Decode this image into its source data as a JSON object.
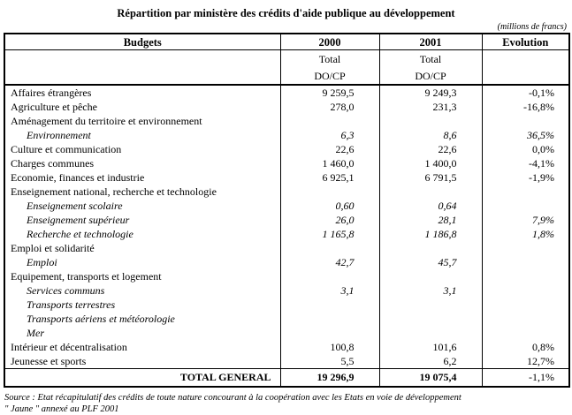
{
  "title": "Répartition par ministère des crédits d'aide publique au développement",
  "unit_note": "(millions de francs)",
  "table": {
    "headers": {
      "budgets": "Budgets",
      "col2000": "2000",
      "col2001": "2001",
      "evolution": "Evolution",
      "total_label": "Total",
      "docp_label": "DO/CP"
    },
    "rows": [
      {
        "label": "Affaires étrangères",
        "indent": false,
        "italic": false,
        "v2000": "9 259,5",
        "v2001": "9 249,3",
        "evol": "-0,1%"
      },
      {
        "label": "Agriculture et pêche",
        "indent": false,
        "italic": false,
        "v2000": "278,0",
        "v2001": "231,3",
        "evol": "-16,8%"
      },
      {
        "label": "Aménagement du territoire et environnement",
        "indent": false,
        "italic": false,
        "v2000": "",
        "v2001": "",
        "evol": ""
      },
      {
        "label": "Environnement",
        "indent": true,
        "italic": true,
        "v2000": "6,3",
        "v2001": "8,6",
        "evol": "36,5%"
      },
      {
        "label": "Culture et communication",
        "indent": false,
        "italic": false,
        "v2000": "22,6",
        "v2001": "22,6",
        "evol": "0,0%"
      },
      {
        "label": "Charges communes",
        "indent": false,
        "italic": false,
        "v2000": "1 460,0",
        "v2001": "1 400,0",
        "evol": "-4,1%"
      },
      {
        "label": "Economie, finances et industrie",
        "indent": false,
        "italic": false,
        "v2000": "6 925,1",
        "v2001": "6 791,5",
        "evol": "-1,9%"
      },
      {
        "label": "Enseignement national, recherche et technologie",
        "indent": false,
        "italic": false,
        "v2000": "",
        "v2001": "",
        "evol": ""
      },
      {
        "label": "Enseignement scolaire",
        "indent": true,
        "italic": true,
        "v2000": "0,60",
        "v2001": "0,64",
        "evol": ""
      },
      {
        "label": "Enseignement supérieur",
        "indent": true,
        "italic": true,
        "v2000": "26,0",
        "v2001": "28,1",
        "evol": "7,9%"
      },
      {
        "label": "Recherche et technologie",
        "indent": true,
        "italic": true,
        "v2000": "1 165,8",
        "v2001": "1 186,8",
        "evol": "1,8%"
      },
      {
        "label": "Emploi et solidarité",
        "indent": false,
        "italic": false,
        "v2000": "",
        "v2001": "",
        "evol": ""
      },
      {
        "label": "Emploi",
        "indent": true,
        "italic": true,
        "v2000": "42,7",
        "v2001": "45,7",
        "evol": ""
      },
      {
        "label": "Equipement, transports et logement",
        "indent": false,
        "italic": false,
        "v2000": "",
        "v2001": "",
        "evol": ""
      },
      {
        "label": "Services communs",
        "indent": true,
        "italic": true,
        "v2000": "3,1",
        "v2001": "3,1",
        "evol": ""
      },
      {
        "label": "Transports terrestres",
        "indent": true,
        "italic": true,
        "v2000": "",
        "v2001": "",
        "evol": ""
      },
      {
        "label": "Transports aériens et météorologie",
        "indent": true,
        "italic": true,
        "v2000": "",
        "v2001": "",
        "evol": ""
      },
      {
        "label": "Mer",
        "indent": true,
        "italic": true,
        "v2000": "",
        "v2001": "",
        "evol": ""
      },
      {
        "label": "Intérieur et décentralisation",
        "indent": false,
        "italic": false,
        "v2000": "100,8",
        "v2001": "101,6",
        "evol": "0,8%"
      },
      {
        "label": "Jeunesse et sports",
        "indent": false,
        "italic": false,
        "v2000": "5,5",
        "v2001": "6,2",
        "evol": "12,7%"
      }
    ],
    "total_row": {
      "label": "TOTAL GENERAL",
      "v2000": "19 296,9",
      "v2001": "19 075,4",
      "evol": "-1,1%"
    }
  },
  "source_line1": "Source : Etat récapitulatif des crédits de toute nature concourant à la coopération avec les  Etats en voie de développement",
  "source_line2": "\" Jaune \" annexé au PLF 2001"
}
